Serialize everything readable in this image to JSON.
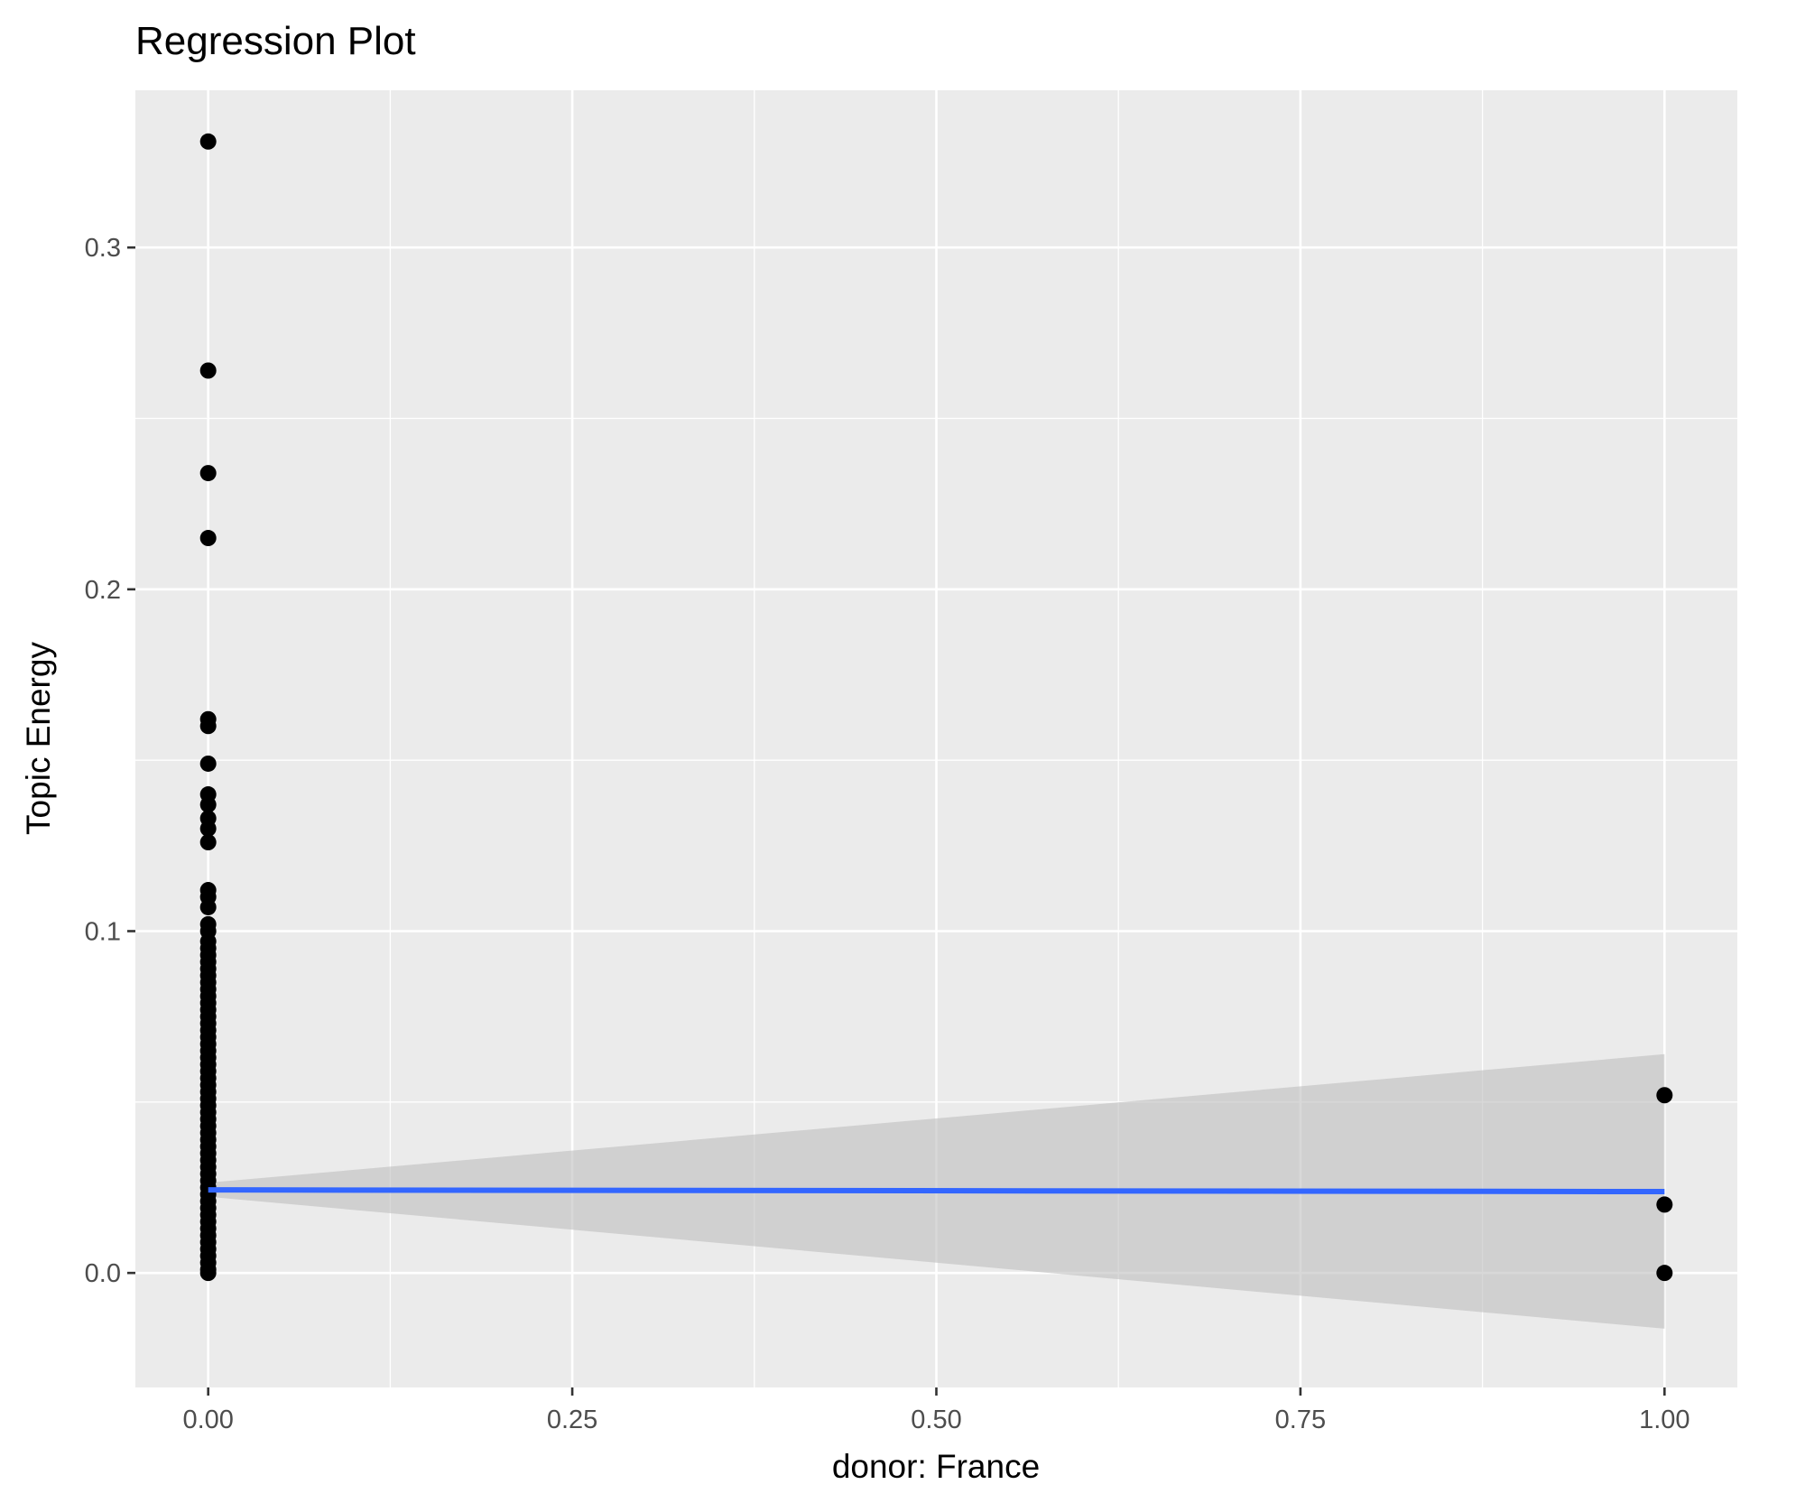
{
  "chart_data": {
    "type": "scatter",
    "title": "Regression Plot",
    "xlabel": "donor: France",
    "ylabel": "Topic Energy",
    "xlim": [
      -0.05,
      1.05
    ],
    "ylim": [
      -0.0335,
      0.346
    ],
    "x_ticks": [
      0.0,
      0.25,
      0.5,
      0.75,
      1.0
    ],
    "x_tick_labels": [
      "0.00",
      "0.25",
      "0.50",
      "0.75",
      "1.00"
    ],
    "y_ticks": [
      0.0,
      0.1,
      0.2,
      0.3
    ],
    "y_tick_labels": [
      "0.0",
      "0.1",
      "0.2",
      "0.3"
    ],
    "grid": true,
    "legend": "none",
    "series": [
      {
        "type": "points",
        "x_value": 0,
        "y_values": [
          0.331,
          0.264,
          0.234,
          0.215,
          0.162,
          0.16,
          0.149,
          0.14,
          0.137,
          0.133,
          0.13,
          0.126,
          0.112,
          0.11,
          0.107,
          0.102,
          0.1,
          0.097,
          0.095,
          0.093,
          0.091,
          0.089,
          0.087,
          0.085,
          0.083,
          0.081,
          0.079,
          0.077,
          0.075,
          0.073,
          0.071,
          0.069,
          0.067,
          0.065,
          0.063,
          0.061,
          0.059,
          0.057,
          0.055,
          0.053,
          0.051,
          0.049,
          0.047,
          0.045,
          0.043,
          0.041,
          0.039,
          0.037,
          0.035,
          0.033,
          0.031,
          0.029,
          0.027,
          0.025,
          0.023,
          0.021,
          0.019,
          0.017,
          0.015,
          0.013,
          0.011,
          0.009,
          0.007,
          0.005,
          0.003,
          0.001,
          0.0
        ]
      },
      {
        "type": "points",
        "x_value": 1,
        "y_values": [
          0.052,
          0.02,
          0.0
        ]
      },
      {
        "type": "regression_line",
        "x": [
          0,
          1
        ],
        "y": [
          0.0243,
          0.0238
        ]
      },
      {
        "type": "confidence_band",
        "x": [
          0,
          1
        ],
        "lower": [
          0.0223,
          -0.0163
        ],
        "upper": [
          0.0264,
          0.064
        ]
      }
    ],
    "colors": {
      "panel_background": "#ebebeb",
      "grid": "#ffffff",
      "points": "#000000",
      "line": "#3366ff",
      "band": "#bebebe"
    }
  }
}
